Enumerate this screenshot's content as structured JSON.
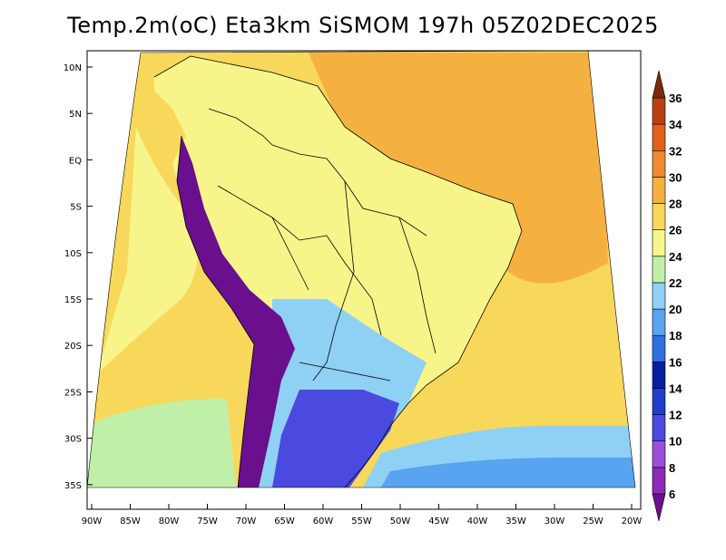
{
  "title": "Temp.2m(oC) Eta3km SiSMOM 197h 05Z02DEC2025",
  "lat_ticks": [
    "10N",
    "5N",
    "EQ",
    "5S",
    "10S",
    "15S",
    "20S",
    "25S",
    "30S",
    "35S"
  ],
  "lon_ticks": [
    "90W",
    "85W",
    "80W",
    "75W",
    "70W",
    "65W",
    "60W",
    "55W",
    "50W",
    "45W",
    "40W",
    "35W",
    "30W",
    "25W",
    "20W"
  ],
  "colorbar": {
    "labels": [
      "6",
      "8",
      "10",
      "12",
      "14",
      "16",
      "18",
      "20",
      "22",
      "24",
      "26",
      "28",
      "30",
      "32",
      "34",
      "36"
    ],
    "colors": [
      "#6a0f8e",
      "#8c2ab8",
      "#9b4fd8",
      "#4a4ae0",
      "#1f3fc8",
      "#0a1fa0",
      "#2f6fe0",
      "#58a4f0",
      "#8fd0f5",
      "#c0f0a8",
      "#f7f58a",
      "#f8d85a",
      "#f5b140",
      "#ef8a30",
      "#e0621a",
      "#b94010",
      "#7a2a0a"
    ]
  },
  "map_colors": {
    "ocean_atlantic_north": "#f5b140",
    "ocean_atlantic_mid": "#f8d85a",
    "ocean_south": "#8fd0f5",
    "ocean_far_south": "#58a4f0",
    "ocean_pacific": "#f7f58a",
    "ocean_pacific_south": "#c0f0a8",
    "land_warm": "#f8d85a",
    "land_mild": "#f7f58a",
    "land_cool": "#8fd0f5",
    "andes": "#6a0f8e"
  }
}
